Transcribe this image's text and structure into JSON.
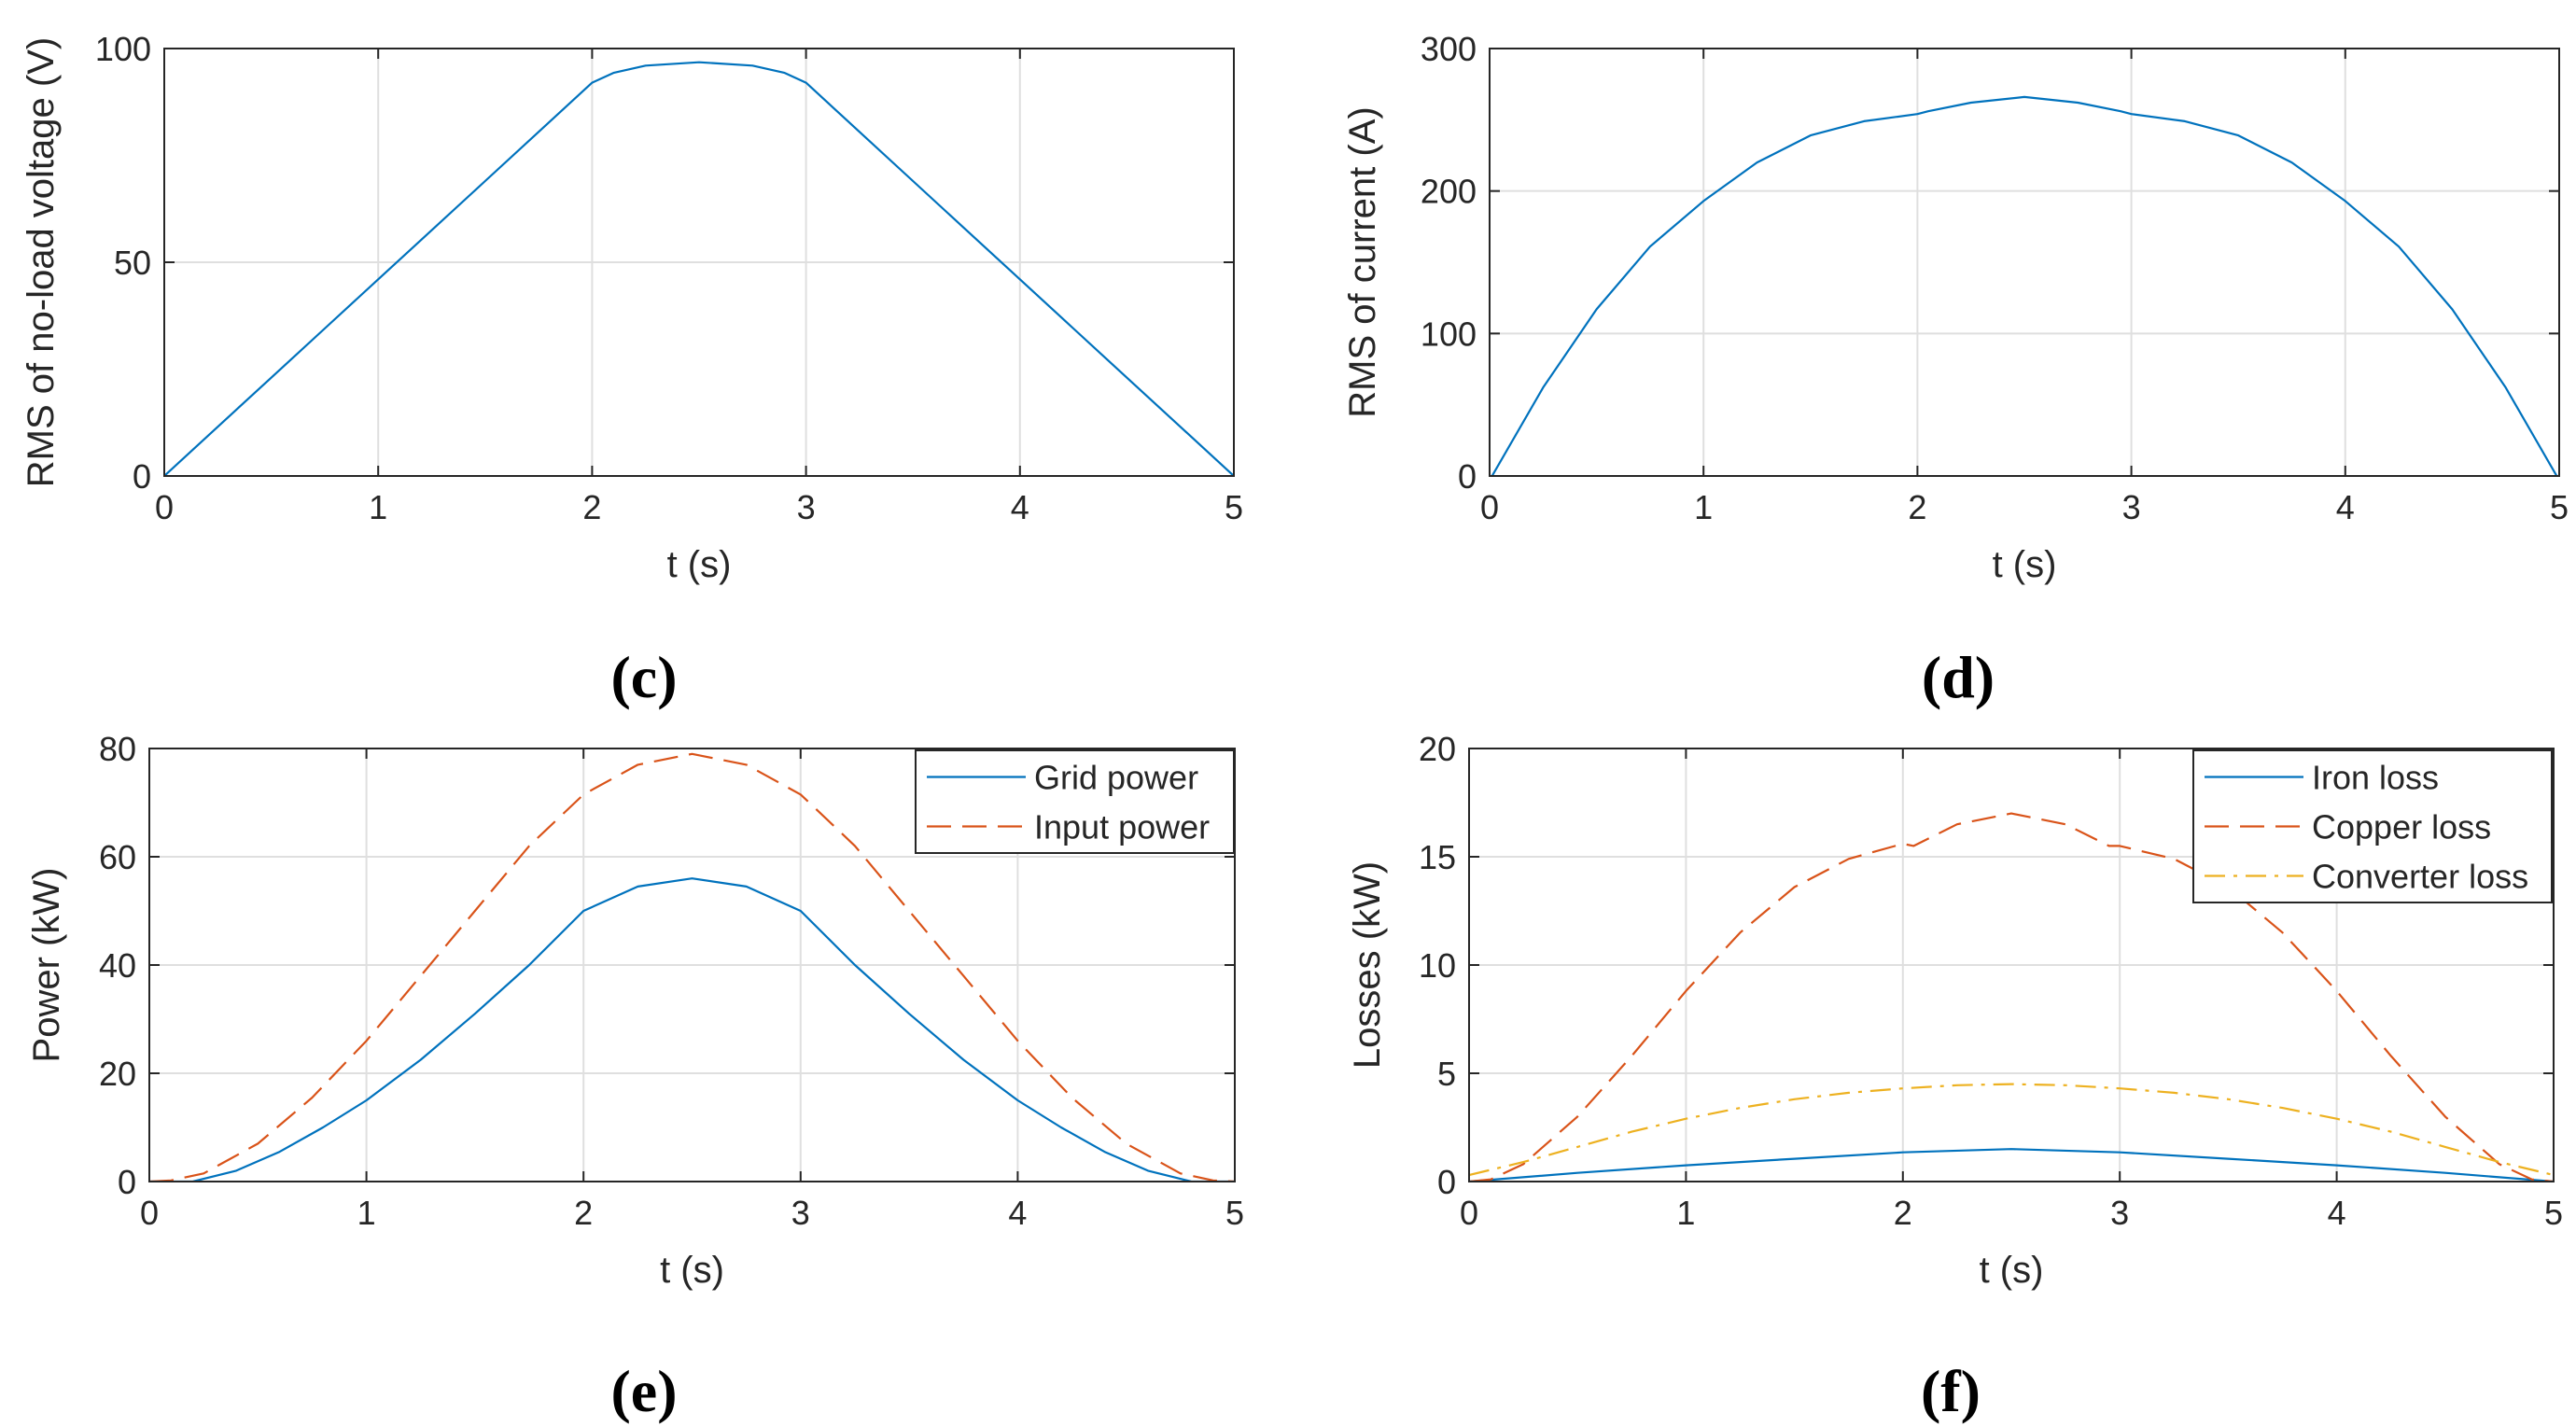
{
  "colors": {
    "series1": "#0072BD",
    "series2": "#D95319",
    "series3": "#EDB120",
    "grid": "#DFDFDF",
    "axis": "#262626"
  },
  "chart_data": [
    {
      "id": "c",
      "caption": "(c)",
      "type": "line",
      "xlabel": "t (s)",
      "ylabel": "RMS of  no-load voltage (V)",
      "xlim": [
        0,
        5
      ],
      "ylim": [
        0,
        100
      ],
      "xticks": [
        "0",
        "1",
        "2",
        "3",
        "4",
        "5"
      ],
      "yticks": [
        "0",
        "50",
        "100"
      ],
      "grid": true,
      "legend": null,
      "series": [
        {
          "name": "",
          "style": "solid",
          "x": [
            0,
            0.25,
            0.5,
            0.75,
            1,
            1.25,
            1.5,
            1.75,
            2,
            2.1,
            2.25,
            2.5,
            2.75,
            2.9,
            3,
            3.25,
            3.5,
            3.75,
            4,
            4.25,
            4.5,
            4.75,
            5
          ],
          "y": [
            0,
            11.5,
            23,
            34.5,
            46,
            57.5,
            69,
            80.5,
            92,
            94.3,
            96,
            96.8,
            96,
            94.3,
            92,
            80.5,
            69,
            57.5,
            46,
            34.5,
            23,
            11.5,
            0
          ]
        }
      ]
    },
    {
      "id": "d",
      "caption": "(d)",
      "type": "line",
      "xlabel": "t (s)",
      "ylabel": "RMS of current (A)",
      "xlim": [
        0,
        5
      ],
      "ylim": [
        0,
        300
      ],
      "xticks": [
        "0",
        "1",
        "2",
        "3",
        "4",
        "5"
      ],
      "yticks": [
        "0",
        "100",
        "200",
        "300"
      ],
      "grid": true,
      "legend": null,
      "series": [
        {
          "name": "",
          "style": "solid",
          "x": [
            0,
            0.25,
            0.5,
            0.75,
            1,
            1.25,
            1.5,
            1.75,
            2,
            2.05,
            2.25,
            2.5,
            2.75,
            2.95,
            3,
            3.25,
            3.5,
            3.75,
            4,
            4.25,
            4.5,
            4.75,
            5
          ],
          "y": [
            -3,
            62,
            117,
            161,
            193,
            220,
            239,
            249,
            254,
            256,
            262,
            266,
            262,
            256,
            254,
            249,
            239,
            220,
            193,
            161,
            117,
            62,
            -3
          ]
        }
      ]
    },
    {
      "id": "e",
      "caption": "(e)",
      "type": "line",
      "xlabel": "t (s)",
      "ylabel": "Power (kW)",
      "xlim": [
        0,
        5
      ],
      "ylim": [
        0,
        80
      ],
      "xticks": [
        "0",
        "1",
        "2",
        "3",
        "4",
        "5"
      ],
      "yticks": [
        "0",
        "20",
        "40",
        "60",
        "80"
      ],
      "grid": true,
      "legend": "top-right",
      "series": [
        {
          "name": "Grid power",
          "style": "solid",
          "x": [
            0,
            0.2,
            0.4,
            0.6,
            0.8,
            1,
            1.25,
            1.5,
            1.75,
            2,
            2.25,
            2.5,
            2.75,
            3,
            3.25,
            3.5,
            3.75,
            4,
            4.2,
            4.4,
            4.6,
            4.8,
            5
          ],
          "y": [
            0,
            0,
            2,
            5.5,
            10,
            15,
            22.5,
            31,
            40,
            50,
            54.5,
            56,
            54.5,
            50,
            40,
            31,
            22.5,
            15,
            10,
            5.5,
            2,
            0,
            0
          ]
        },
        {
          "name": "Input power",
          "style": "dashed",
          "x": [
            0,
            0.1,
            0.25,
            0.5,
            0.75,
            1,
            1.25,
            1.5,
            1.75,
            2,
            2.25,
            2.5,
            2.75,
            3,
            3.25,
            3.5,
            3.75,
            4,
            4.25,
            4.5,
            4.75,
            4.9,
            5
          ],
          "y": [
            0,
            0.2,
            1.5,
            7,
            15.5,
            26,
            38,
            50,
            62,
            71.5,
            77,
            79,
            77,
            71.5,
            62,
            50,
            38,
            26,
            15.5,
            7,
            1.5,
            0.2,
            0
          ]
        }
      ]
    },
    {
      "id": "f",
      "caption": "(f)",
      "type": "line",
      "xlabel": "t (s)",
      "ylabel": "Losses (kW)",
      "xlim": [
        0,
        5
      ],
      "ylim": [
        0,
        20
      ],
      "xticks": [
        "0",
        "1",
        "2",
        "3",
        "4",
        "5"
      ],
      "yticks": [
        "0",
        "5",
        "10",
        "15",
        "20"
      ],
      "grid": true,
      "legend": "top-right",
      "series": [
        {
          "name": "Iron loss",
          "style": "solid",
          "x": [
            0,
            0.5,
            1,
            1.5,
            2,
            2.5,
            3,
            3.5,
            4,
            4.5,
            5
          ],
          "y": [
            0,
            0.4,
            0.75,
            1.05,
            1.35,
            1.5,
            1.35,
            1.05,
            0.75,
            0.4,
            0
          ]
        },
        {
          "name": "Copper loss",
          "style": "dashed",
          "x": [
            0,
            0.1,
            0.25,
            0.5,
            0.75,
            1,
            1.25,
            1.5,
            1.75,
            2,
            2.05,
            2.25,
            2.5,
            2.75,
            2.95,
            3,
            3.25,
            3.5,
            3.75,
            4,
            4.25,
            4.5,
            4.75,
            4.9,
            5
          ],
          "y": [
            0,
            0.1,
            0.8,
            3,
            5.8,
            8.8,
            11.5,
            13.6,
            14.9,
            15.6,
            15.5,
            16.5,
            17,
            16.5,
            15.5,
            15.5,
            14.9,
            13.6,
            11.5,
            8.8,
            5.8,
            3,
            0.8,
            0.1,
            0
          ]
        },
        {
          "name": "Converter loss",
          "style": "dashdot",
          "x": [
            0,
            0.25,
            0.5,
            0.75,
            1,
            1.25,
            1.5,
            1.75,
            2,
            2.25,
            2.5,
            2.75,
            3,
            3.25,
            3.5,
            3.75,
            4,
            4.25,
            4.5,
            4.75,
            5
          ],
          "y": [
            0.3,
            0.9,
            1.6,
            2.3,
            2.9,
            3.4,
            3.8,
            4.1,
            4.3,
            4.45,
            4.5,
            4.45,
            4.3,
            4.1,
            3.8,
            3.4,
            2.9,
            2.3,
            1.6,
            0.9,
            0.3
          ]
        }
      ]
    }
  ]
}
